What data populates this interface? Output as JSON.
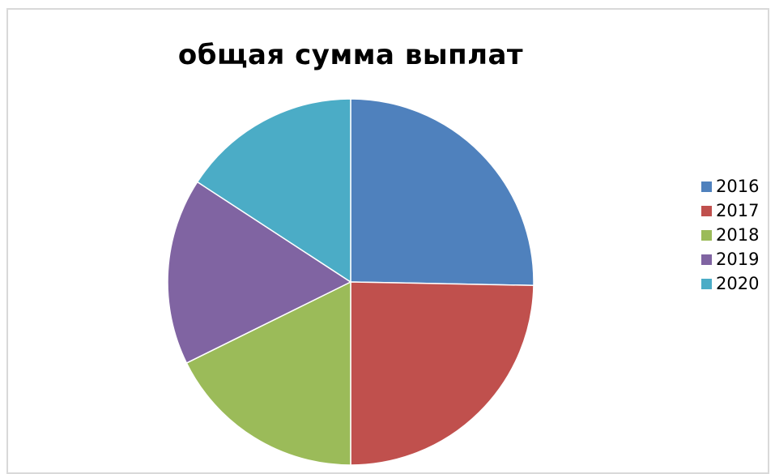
{
  "chart_data": {
    "type": "pie",
    "title": "общая сумма выплат",
    "categories": [
      "2016",
      "2017",
      "2018",
      "2019",
      "2020"
    ],
    "values": [
      25.3,
      24.7,
      17.7,
      16.5,
      15.8
    ],
    "colors": [
      "#4f81bd",
      "#c0504d",
      "#9bbb59",
      "#8064a2",
      "#4bacc6"
    ],
    "legend": {
      "position": "right",
      "entries": [
        "2016",
        "2017",
        "2018",
        "2019",
        "2020"
      ]
    },
    "start_angle": "12 o'clock",
    "direction": "clockwise"
  }
}
